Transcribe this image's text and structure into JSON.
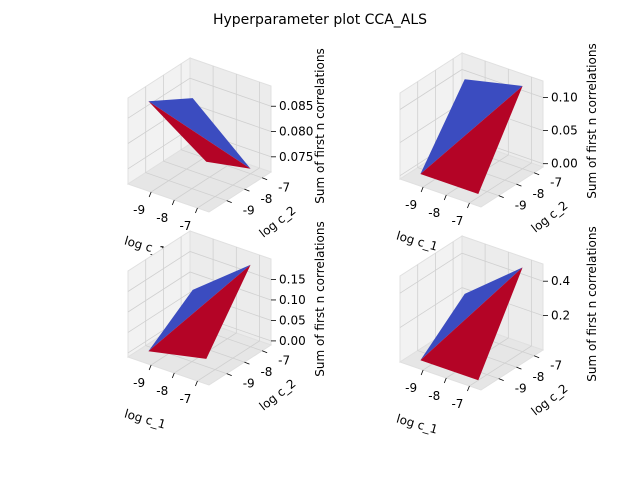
{
  "figure": {
    "title": "Hyperparameter plot CCA_ALS"
  },
  "colors": {
    "high": "#b40426",
    "low": "#3b4cc0",
    "pane": "#f2f2f2",
    "grid": "#d0d0d0",
    "edge": "#000000"
  },
  "chart_data": [
    {
      "type": "surface",
      "xlabel": "log c_1",
      "ylabel": "log c_2",
      "zlabel": "Sum of first n correlations",
      "x": [
        -9.5,
        -7
      ],
      "y": [
        -9.5,
        -7
      ],
      "z": [
        [
          0.088,
          0.083
        ],
        [
          0.08,
          0.073
        ]
      ],
      "xticks": [
        "-9",
        "-8",
        "-7"
      ],
      "yticks": [
        "-9",
        "-8",
        "-7"
      ],
      "zticks": [
        {
          "value": 0.075,
          "label": "0.075"
        },
        {
          "value": 0.08,
          "label": "0.080"
        },
        {
          "value": 0.085,
          "label": "0.085"
        }
      ],
      "zlim": [
        0.072,
        0.089
      ]
    },
    {
      "type": "surface",
      "xlabel": "log c_1",
      "ylabel": "log c_2",
      "zlabel": "Sum of first n correlations",
      "x": [
        -9.5,
        -7
      ],
      "y": [
        -9.5,
        -7
      ],
      "z": [
        [
          0.0,
          0.1
        ],
        [
          0.0,
          0.12
        ]
      ],
      "xticks": [
        "-9",
        "-8",
        "-7"
      ],
      "yticks": [
        "-9",
        "-8",
        "-7"
      ],
      "zticks": [
        {
          "value": 0.0,
          "label": "0.00"
        },
        {
          "value": 0.05,
          "label": "0.05"
        },
        {
          "value": 0.1,
          "label": "0.10"
        }
      ],
      "zlim": [
        -0.005,
        0.125
      ]
    },
    {
      "type": "surface",
      "xlabel": "log c_1",
      "ylabel": "log c_2",
      "zlabel": "Sum of first n correlations",
      "x": [
        -9.5,
        -7
      ],
      "y": [
        -9.5,
        -7
      ],
      "z": [
        [
          0.0,
          0.08
        ],
        [
          0.03,
          0.19
        ]
      ],
      "xticks": [
        "-9",
        "-8",
        "-7"
      ],
      "yticks": [
        "-9",
        "-8",
        "-7"
      ],
      "zticks": [
        {
          "value": 0.0,
          "label": "0.00"
        },
        {
          "value": 0.05,
          "label": "0.05"
        },
        {
          "value": 0.1,
          "label": "0.10"
        },
        {
          "value": 0.15,
          "label": "0.15"
        }
      ],
      "zlim": [
        -0.01,
        0.2
      ]
    },
    {
      "type": "surface",
      "xlabel": "log c_1",
      "ylabel": "log c_2",
      "zlabel": "Sum of first n correlations",
      "x": [
        -9.5,
        -7
      ],
      "y": [
        -9.5,
        -7
      ],
      "z": [
        [
          0.0,
          0.22
        ],
        [
          0.0,
          0.49
        ]
      ],
      "xticks": [
        "-9",
        "-8",
        "-7"
      ],
      "yticks": [
        "-9",
        "-8",
        "-7"
      ],
      "zticks": [
        {
          "value": 0.2,
          "label": "0.2"
        },
        {
          "value": 0.4,
          "label": "0.4"
        }
      ],
      "zlim": [
        0.0,
        0.5
      ]
    }
  ]
}
